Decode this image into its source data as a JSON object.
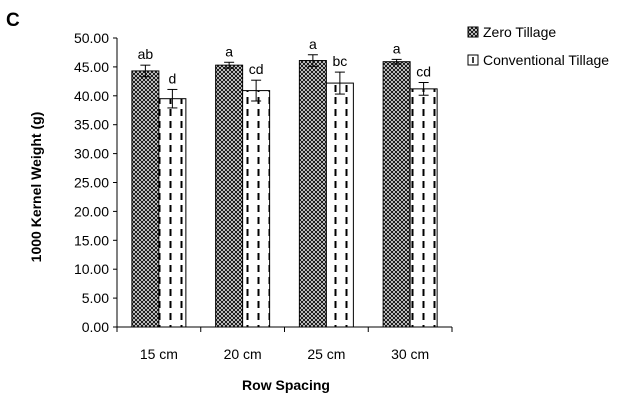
{
  "chart_data": {
    "type": "bar",
    "panel_label": "C",
    "title": "",
    "xlabel": "Row Spacing",
    "ylabel": "1000 Kernel Weight (g)",
    "ylim": [
      0,
      50
    ],
    "ytick_step": 5,
    "ytick_labels": [
      "0.00",
      "5.00",
      "10.00",
      "15.00",
      "20.00",
      "25.00",
      "30.00",
      "35.00",
      "40.00",
      "45.00",
      "50.00"
    ],
    "categories": [
      "15 cm",
      "20 cm",
      "25 cm",
      "30 cm"
    ],
    "grid": false,
    "legend_position": "top-right",
    "series": [
      {
        "name": "Zero Tillage",
        "pattern": "crosshatch",
        "values": [
          44.3,
          45.3,
          46.1,
          45.9
        ],
        "errors": [
          1.0,
          0.5,
          1.0,
          0.4
        ],
        "labels": [
          "ab",
          "a",
          "a",
          "a"
        ]
      },
      {
        "name": "Conventional Tillage",
        "pattern": "dashed-vertical",
        "values": [
          39.5,
          40.9,
          42.2,
          41.2
        ],
        "errors": [
          1.6,
          1.8,
          1.9,
          1.1
        ],
        "labels": [
          "d",
          "cd",
          "bc",
          "cd"
        ]
      }
    ]
  }
}
